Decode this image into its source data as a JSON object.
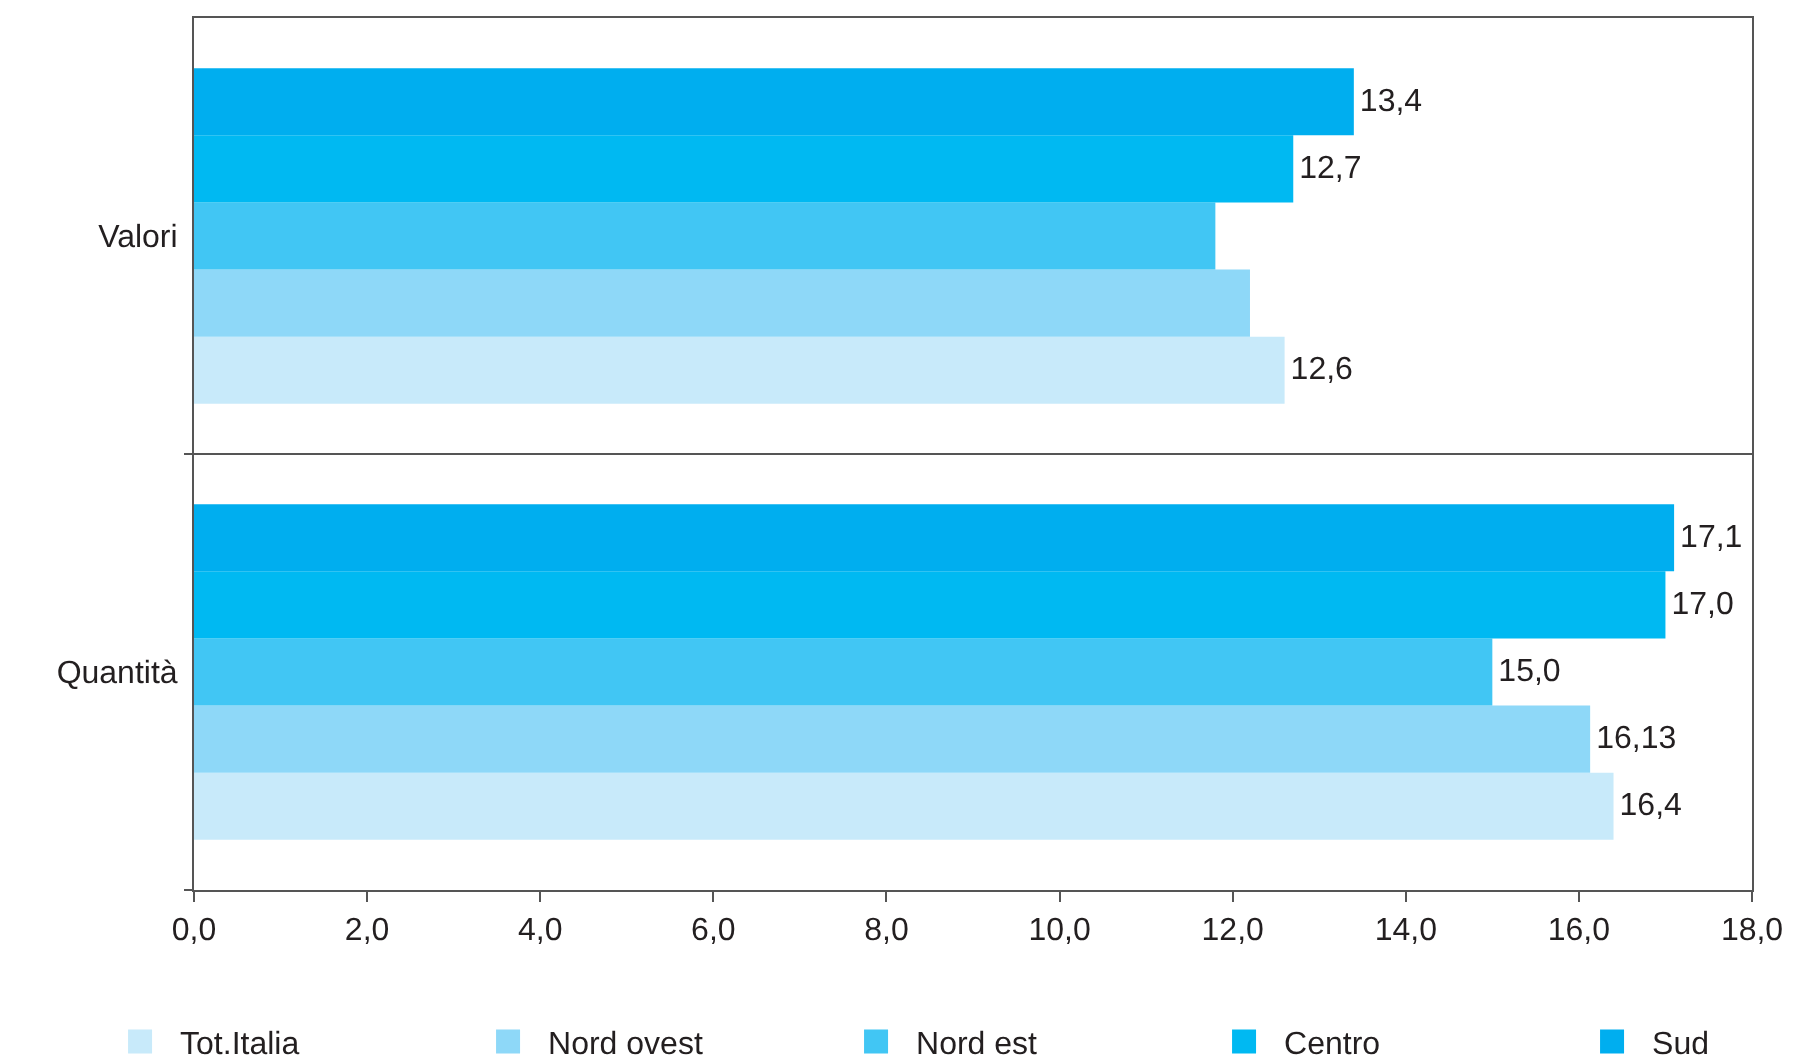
{
  "chart_data": {
    "type": "bar",
    "orientation": "horizontal",
    "categories": [
      "Valori",
      "Quantità"
    ],
    "series": [
      {
        "name": "Tot.Italia",
        "color": "#c8eafa",
        "values": [
          12.6,
          16.4
        ],
        "value_labels": [
          "12,6",
          "16,4"
        ]
      },
      {
        "name": "Nord ovest",
        "color": "#8ed8f8",
        "values": [
          12.2,
          16.13
        ],
        "value_labels": [
          null,
          "16,13"
        ]
      },
      {
        "name": "Nord est",
        "color": "#41c6f4",
        "values": [
          11.8,
          15.0
        ],
        "value_labels": [
          null,
          "15,0"
        ]
      },
      {
        "name": "Centro",
        "color": "#00b9f2",
        "values": [
          12.7,
          17.0
        ],
        "value_labels": [
          "12,7",
          "17,0"
        ]
      },
      {
        "name": "Sud",
        "color": "#00aeef",
        "values": [
          13.4,
          17.1
        ],
        "value_labels": [
          "13,4",
          "17,1"
        ]
      }
    ],
    "xlim": [
      0,
      18
    ],
    "xticks": [
      {
        "value": 0,
        "label": "0,0"
      },
      {
        "value": 2,
        "label": "2,0"
      },
      {
        "value": 4,
        "label": "4,0"
      },
      {
        "value": 6,
        "label": "6,0"
      },
      {
        "value": 8,
        "label": "8,0"
      },
      {
        "value": 10,
        "label": "10,0"
      },
      {
        "value": 12,
        "label": "12,0"
      },
      {
        "value": 14,
        "label": "14,0"
      },
      {
        "value": 16,
        "label": "16,0"
      },
      {
        "value": 18,
        "label": "18,0"
      }
    ],
    "grid": "y",
    "legend": "bottom"
  }
}
